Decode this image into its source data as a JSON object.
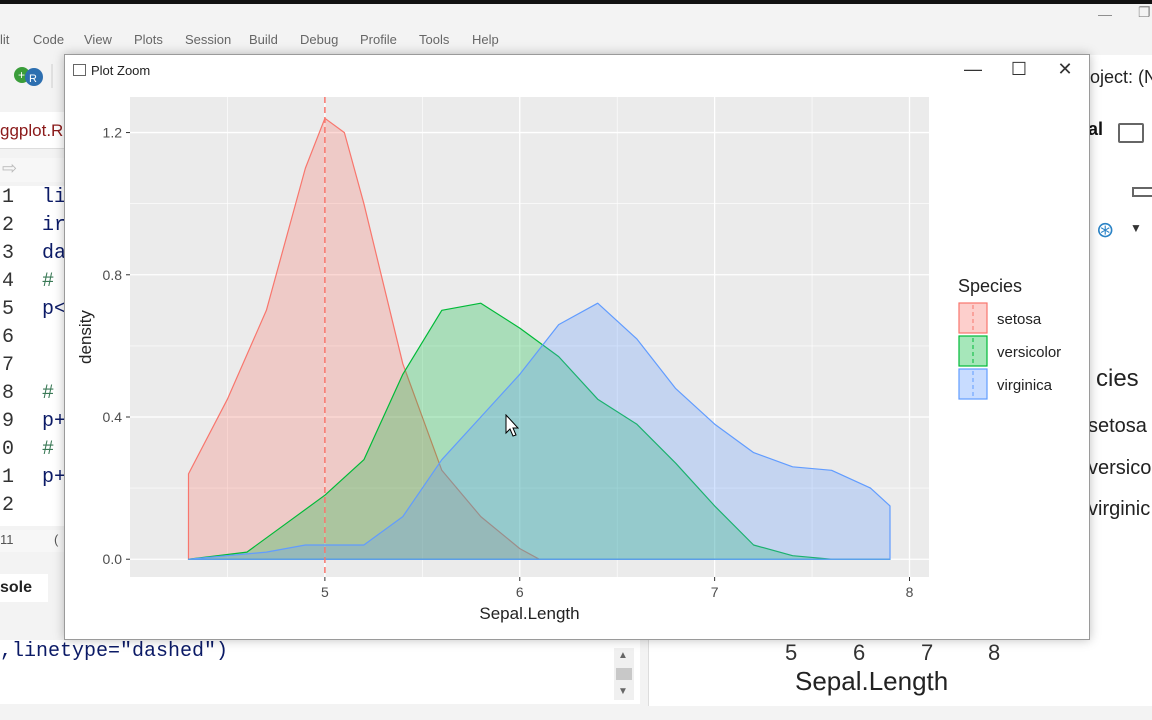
{
  "window": {
    "title": "Plot Zoom",
    "minimize_glyph": "—",
    "maximize_glyph": "☐",
    "close_glyph": "✕"
  },
  "background": {
    "menu": [
      "lit",
      "Code",
      "View",
      "Plots",
      "Session",
      "Build",
      "Debug",
      "Profile",
      "Tools",
      "Help"
    ],
    "editor_tab": "ggplot.R",
    "project_label": "oject: (No",
    "right_tab": "al",
    "line_numbers": [
      "1",
      "2",
      "3",
      "4",
      "5",
      "6",
      "7",
      "8",
      "9",
      "0",
      "1",
      "2"
    ],
    "code_fragments": [
      "li",
      "ir",
      "da",
      "#",
      "p<",
      "",
      "",
      "#",
      "p+",
      "#",
      "p+",
      ""
    ],
    "status_line": "11",
    "status_paren": "(",
    "console_tab": "sole",
    "console_text": ",linetype=\"dashed\")",
    "bg_legend_title": "cies",
    "bg_legend_items": [
      "setosa",
      "versico",
      "virginic"
    ],
    "bg_xticks": [
      "5",
      "6",
      "7",
      "8"
    ],
    "bg_xlabel": "Sepal.Length"
  },
  "chart_data": {
    "type": "area",
    "xlabel": "Sepal.Length",
    "ylabel": "density",
    "xlim": [
      4.0,
      8.1
    ],
    "ylim": [
      -0.05,
      1.3
    ],
    "xticks": [
      5,
      6,
      7,
      8
    ],
    "yticks": [
      0.0,
      0.4,
      0.8,
      1.2
    ],
    "ytick_labels": [
      "0.0",
      "0.4",
      "0.8",
      "1.2"
    ],
    "grid": true,
    "legend": {
      "title": "Species",
      "position": "right"
    },
    "vline": {
      "x": 5.0,
      "color": "#F8766D",
      "style": "dashed"
    },
    "series": [
      {
        "name": "setosa",
        "color": "#F8766D",
        "x": [
          4.3,
          4.5,
          4.7,
          4.9,
          5.0,
          5.1,
          5.2,
          5.4,
          5.6,
          5.8,
          6.0,
          6.1,
          7.0
        ],
        "y": [
          0.24,
          0.45,
          0.7,
          1.1,
          1.24,
          1.2,
          1.0,
          0.55,
          0.25,
          0.12,
          0.03,
          0.0,
          0.0
        ]
      },
      {
        "name": "versicolor",
        "color": "#00BA38",
        "x": [
          4.3,
          4.6,
          4.8,
          5.0,
          5.2,
          5.4,
          5.6,
          5.8,
          6.0,
          6.2,
          6.4,
          6.6,
          6.8,
          7.0,
          7.2,
          7.4,
          7.6,
          7.9
        ],
        "y": [
          0.0,
          0.02,
          0.1,
          0.18,
          0.28,
          0.52,
          0.7,
          0.72,
          0.65,
          0.57,
          0.45,
          0.38,
          0.27,
          0.15,
          0.04,
          0.01,
          0.0,
          0.0
        ]
      },
      {
        "name": "virginica",
        "color": "#619CFF",
        "x": [
          4.3,
          4.7,
          4.9,
          5.0,
          5.2,
          5.4,
          5.6,
          5.8,
          6.0,
          6.2,
          6.4,
          6.6,
          6.8,
          7.0,
          7.2,
          7.4,
          7.6,
          7.8,
          7.9
        ],
        "y": [
          0.0,
          0.02,
          0.04,
          0.04,
          0.04,
          0.12,
          0.28,
          0.4,
          0.52,
          0.66,
          0.72,
          0.62,
          0.48,
          0.38,
          0.3,
          0.26,
          0.25,
          0.2,
          0.15
        ]
      }
    ]
  }
}
